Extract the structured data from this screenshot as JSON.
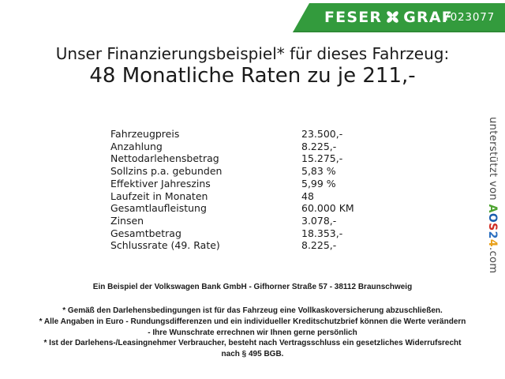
{
  "header": {
    "bar_color": "#339b3d",
    "brand": {
      "word1": "FESER",
      "word2": "GRAF"
    },
    "vehicle_id": "Y023077"
  },
  "title": {
    "line1": "Unser Finanzierungsbeispiel* für dieses Fahrzeug:",
    "line2": "48 Monatliche Raten zu je 211,-"
  },
  "finance_table": {
    "rows": [
      {
        "label": "Fahrzeugpreis",
        "value": "23.500,-"
      },
      {
        "label": "Anzahlung",
        "value": "8.225,-"
      },
      {
        "label": "Nettodarlehensbetrag",
        "value": "15.275,-"
      },
      {
        "label": "Sollzins p.a. gebunden",
        "value": "5,83 %"
      },
      {
        "label": "Effektiver Jahreszins",
        "value": "5,99 %"
      },
      {
        "label": "Laufzeit in Monaten",
        "value": "48"
      },
      {
        "label": "Gesamtlaufleistung",
        "value": "60.000 KM"
      },
      {
        "label": "Zinsen",
        "value": "3.078,-"
      },
      {
        "label": "Gesamtbetrag",
        "value": "18.353,-"
      },
      {
        "label": "Schlussrate (49. Rate)",
        "value": "8.225,-"
      }
    ]
  },
  "footer": {
    "bank_line": "Ein Beispiel der Volkswagen Bank GmbH - Gifhorner Straße 57 - 38112 Braunschweig",
    "disclaimer_lines": [
      "* Gemäß den Darlehensbedingungen ist für das Fahrzeug eine Vollkaskoversicherung abzuschließen.",
      "* Alle Angaben in Euro - Rundungsdifferenzen und ein individueller Kreditschutzbrief können die Werte verändern",
      "- Ihre Wunschrate errechnen wir Ihnen gerne persönlich",
      "* Ist der Darlehens-/Leasingnehmer Verbraucher, besteht nach Vertragsschluss ein gesetzliches Widerrufsrecht",
      "nach § 495 BGB."
    ]
  },
  "sidebar_vertical": {
    "prefix": "unterstützt von ",
    "brand_letters": [
      {
        "char": "A",
        "color": "#4ca32f"
      },
      {
        "char": "O",
        "color": "#1a5dad"
      },
      {
        "char": "S",
        "color": "#d02b20"
      },
      {
        "char": "2",
        "color": "#2b6fc0"
      },
      {
        "char": "4",
        "color": "#e8a01b"
      }
    ],
    "suffix": ".com"
  }
}
